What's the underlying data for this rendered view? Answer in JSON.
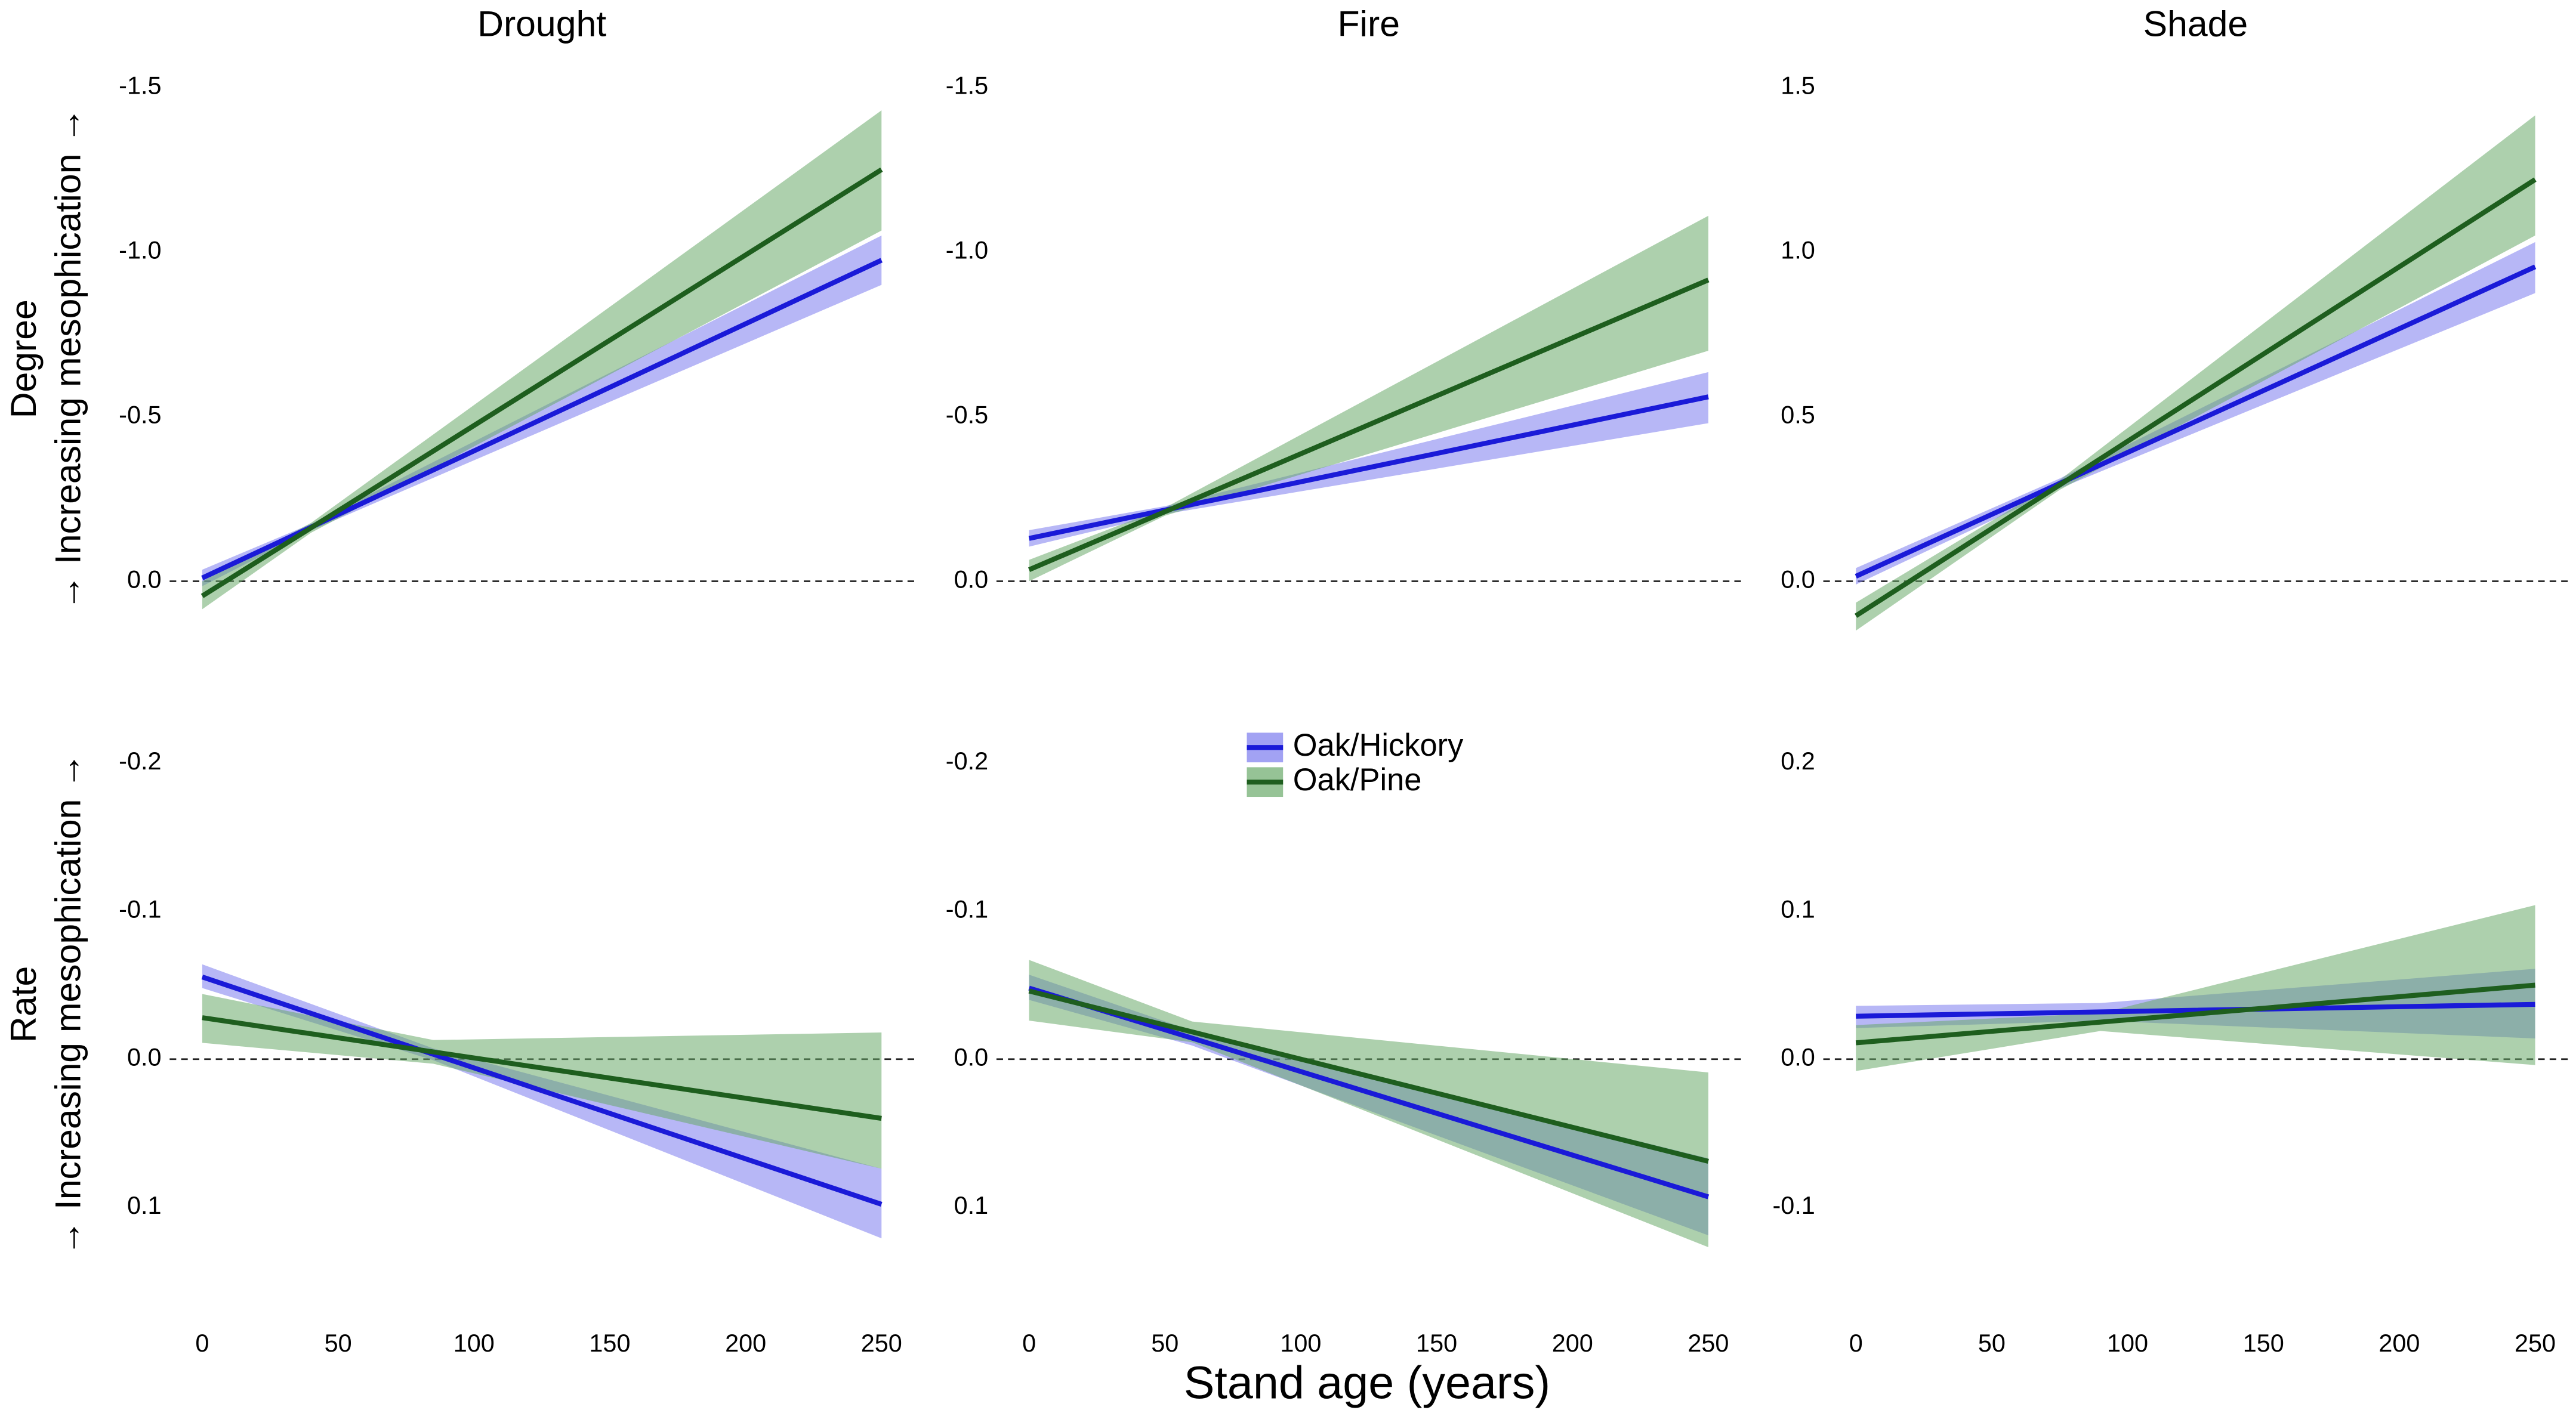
{
  "xlabel": "Stand age (years)",
  "chart_data": [
    {
      "type": "line",
      "title": "Drought",
      "ylabel": [
        "Degree",
        "→ Increasing mesophication →"
      ],
      "x": [
        0,
        40,
        250
      ],
      "xlim": [
        -12,
        262
      ],
      "ylim": [
        0.2,
        -1.55
      ],
      "yticks": [
        {
          "value": 0,
          "label": "0.0"
        },
        -0.5,
        {
          "value": -1,
          "label": "-1.0"
        },
        -1.5
      ],
      "hline": 0,
      "series": [
        {
          "name": "Oak/Hickory",
          "color": "#1a1ad8",
          "fill": "#7b7bee",
          "values": [
            -0.01,
            -0.164,
            -0.975
          ],
          "lower": [
            -0.035,
            -0.174,
            -1.05
          ],
          "upper": [
            0.015,
            -0.154,
            -0.9
          ]
        },
        {
          "name": "Oak/Pine",
          "color": "#1e5e1e",
          "fill": "#6aa96a",
          "values": [
            0.045,
            -0.162,
            -1.25
          ],
          "lower": [
            0,
            -0.177,
            -1.43
          ],
          "upper": [
            0.085,
            -0.147,
            -1.065
          ]
        }
      ]
    },
    {
      "type": "line",
      "title": "Fire",
      "x": [
        0,
        50,
        250
      ],
      "xlim": [
        -12,
        262
      ],
      "ylim": [
        0.2,
        -1.55
      ],
      "yticks": [
        {
          "value": 0,
          "label": "0.0"
        },
        -0.5,
        {
          "value": -1,
          "label": "-1.0"
        },
        -1.5
      ],
      "hline": 0,
      "series": [
        {
          "name": "Oak/Hickory",
          "color": "#1a1ad8",
          "fill": "#7b7bee",
          "values": [
            -0.13,
            -0.216,
            -0.56
          ],
          "lower": [
            -0.155,
            -0.228,
            -0.635
          ],
          "upper": [
            -0.105,
            -0.204,
            -0.48
          ]
        },
        {
          "name": "Oak/Pine",
          "color": "#1e5e1e",
          "fill": "#6aa96a",
          "values": [
            -0.035,
            -0.211,
            -0.915
          ],
          "lower": [
            -0.065,
            -0.223,
            -1.11
          ],
          "upper": [
            0,
            -0.199,
            -0.7
          ]
        }
      ]
    },
    {
      "type": "line",
      "title": "Shade",
      "x": [
        0,
        75,
        250
      ],
      "xlim": [
        -12,
        262
      ],
      "ylim": [
        -0.2,
        1.55
      ],
      "yticks": [
        {
          "value": 0,
          "label": "0.0"
        },
        0.5,
        {
          "value": 1,
          "label": "1.0"
        },
        1.5
      ],
      "hline": 0,
      "series": [
        {
          "name": "Oak/Hickory",
          "color": "#1a1ad8",
          "fill": "#7b7bee",
          "values": [
            0.015,
            0.297,
            0.955
          ],
          "lower": [
            -0.01,
            0.282,
            0.875
          ],
          "upper": [
            0.04,
            0.312,
            1.03
          ]
        },
        {
          "name": "Oak/Pine",
          "color": "#1e5e1e",
          "fill": "#6aa96a",
          "values": [
            -0.105,
            0.2925,
            1.22
          ],
          "lower": [
            -0.15,
            0.2775,
            1.05
          ],
          "upper": [
            -0.065,
            0.3075,
            1.415
          ]
        }
      ]
    },
    {
      "type": "line",
      "ylabel": [
        "Rate",
        "→ Increasing mesophication →"
      ],
      "x": [
        0,
        85,
        250
      ],
      "xlim": [
        -12,
        262
      ],
      "ylim": [
        0.152,
        -0.226
      ],
      "xticks": [
        0,
        50,
        100,
        150,
        200,
        250
      ],
      "yticks": [
        0.1,
        {
          "value": 0,
          "label": "0.0"
        },
        -0.1,
        -0.2
      ],
      "hline": 0,
      "series": [
        {
          "name": "Oak/Hickory",
          "color": "#1a1ad8",
          "fill": "#7b7bee",
          "values": [
            -0.0555,
            -0.0033,
            0.098
          ],
          "lower": [
            -0.064,
            -0.0073,
            0.074
          ],
          "upper": [
            -0.048,
            0.0007,
            0.121
          ]
        },
        {
          "name": "Oak/Pine",
          "color": "#1e5e1e",
          "fill": "#6aa96a",
          "values": [
            -0.028,
            -0.0049,
            0.04
          ],
          "lower": [
            -0.044,
            -0.0129,
            -0.018
          ],
          "upper": [
            -0.011,
            0.0031,
            0.074
          ]
        }
      ]
    },
    {
      "type": "line",
      "legend": "upper center",
      "x": [
        0,
        60,
        250
      ],
      "xlim": [
        -12,
        262
      ],
      "ylim": [
        0.152,
        -0.226
      ],
      "xticks": [
        0,
        50,
        100,
        150,
        200,
        250
      ],
      "yticks": [
        0.1,
        {
          "value": 0,
          "label": "0.0"
        },
        -0.1,
        -0.2
      ],
      "hline": 0,
      "series": [
        {
          "name": "Oak/Hickory",
          "color": "#1a1ad8",
          "fill": "#7b7bee",
          "values": [
            -0.048,
            -0.0142,
            0.093
          ],
          "lower": [
            -0.057,
            -0.0192,
            0.067
          ],
          "upper": [
            -0.04,
            -0.0092,
            0.119
          ]
        },
        {
          "name": "Oak/Pine",
          "color": "#1e5e1e",
          "fill": "#6aa96a",
          "values": [
            -0.046,
            -0.0184,
            0.069
          ],
          "lower": [
            -0.067,
            -0.0254,
            0.009
          ],
          "upper": [
            -0.026,
            -0.0114,
            0.127
          ]
        }
      ]
    },
    {
      "type": "line",
      "x": [
        0,
        90,
        250
      ],
      "xlim": [
        -12,
        262
      ],
      "ylim": [
        -0.152,
        0.226
      ],
      "xticks": [
        0,
        50,
        100,
        150,
        200,
        250
      ],
      "yticks": [
        -0.1,
        {
          "value": 0,
          "label": "0.0"
        },
        0.1,
        0.2
      ],
      "hline": 0,
      "series": [
        {
          "name": "Oak/Hickory",
          "color": "#1a1ad8",
          "fill": "#7b7bee",
          "values": [
            0.029,
            0.0319,
            0.037
          ],
          "lower": [
            0.021,
            0.0259,
            0.014
          ],
          "upper": [
            0.036,
            0.0379,
            0.061
          ]
        },
        {
          "name": "Oak/Pine",
          "color": "#1e5e1e",
          "fill": "#6aa96a",
          "values": [
            0.011,
            0.025,
            0.05
          ],
          "lower": [
            -0.008,
            0.019,
            -0.004
          ],
          "upper": [
            0.023,
            0.031,
            0.104
          ]
        }
      ]
    }
  ]
}
